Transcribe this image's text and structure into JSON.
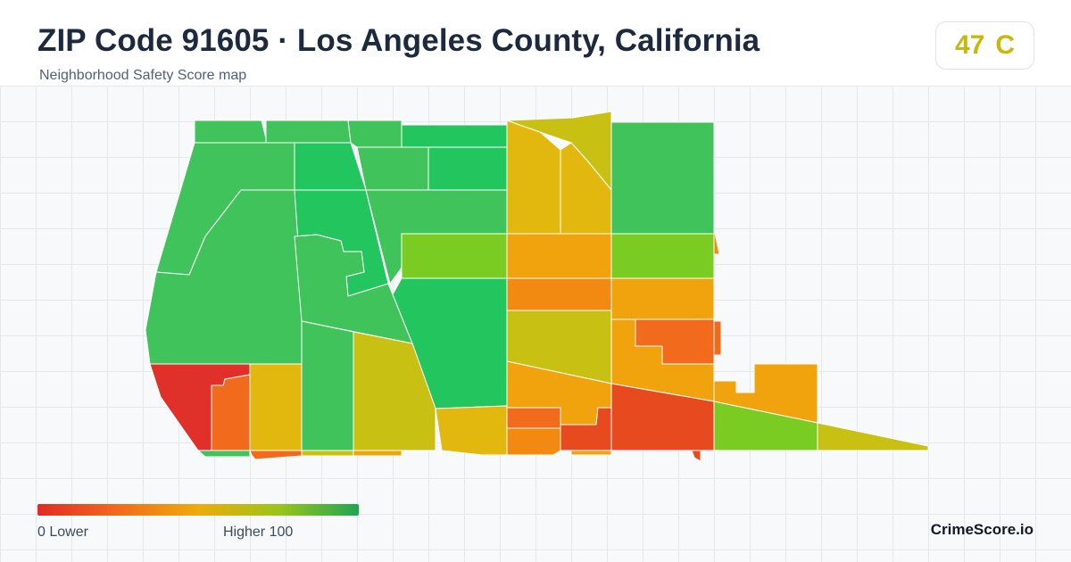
{
  "header": {
    "title": "ZIP Code 91605 · Los Angeles County, California",
    "subtitle": "Neighborhood Safety Score map"
  },
  "score": {
    "value": "47",
    "grade": "C",
    "color": "#c6b80e"
  },
  "legend": {
    "low_label": "0  Lower",
    "high_label": "Higher  100",
    "min": 0,
    "max": 100,
    "gradient": [
      "#e12b25",
      "#f26a1c",
      "#eeab0c",
      "#9cc41a",
      "#1ea653"
    ]
  },
  "brand": "CrimeScore.io",
  "map": {
    "region_colors": {
      "high_green": "#22c55e",
      "green": "#3fc35a",
      "yellow_green": "#7acc22",
      "olive": "#c8c012",
      "yellow": "#e2b80e",
      "amber": "#f0a30c",
      "orange": "#f28a12",
      "dark_orange": "#f26a1c",
      "red_orange": "#e84a20",
      "red": "#e0302a"
    }
  }
}
